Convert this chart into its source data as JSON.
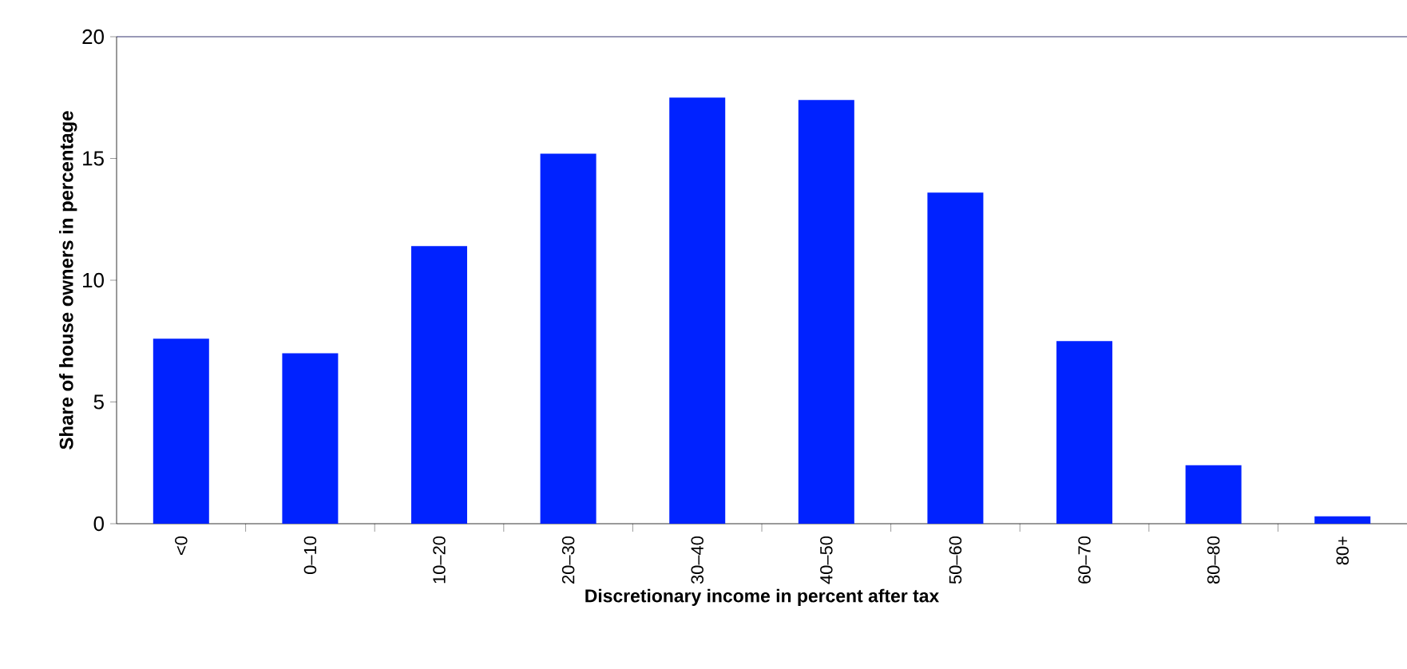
{
  "chart_data": {
    "type": "bar",
    "xlabel": "Discretionary income in percent after tax",
    "ylabel": "Share of house owners in percentage",
    "categories": [
      "<0",
      "0–10",
      "10–20",
      "20–30",
      "30–40",
      "40–50",
      "50–60",
      "60–70",
      "80–80",
      "80+"
    ],
    "values": [
      7.6,
      7.0,
      11.4,
      15.2,
      17.5,
      17.4,
      13.6,
      7.5,
      2.4,
      0.3
    ],
    "color": "#0022ff",
    "ylim": [
      0,
      20
    ],
    "yticks": [
      0,
      5,
      10,
      15,
      20
    ],
    "grid": false
  }
}
